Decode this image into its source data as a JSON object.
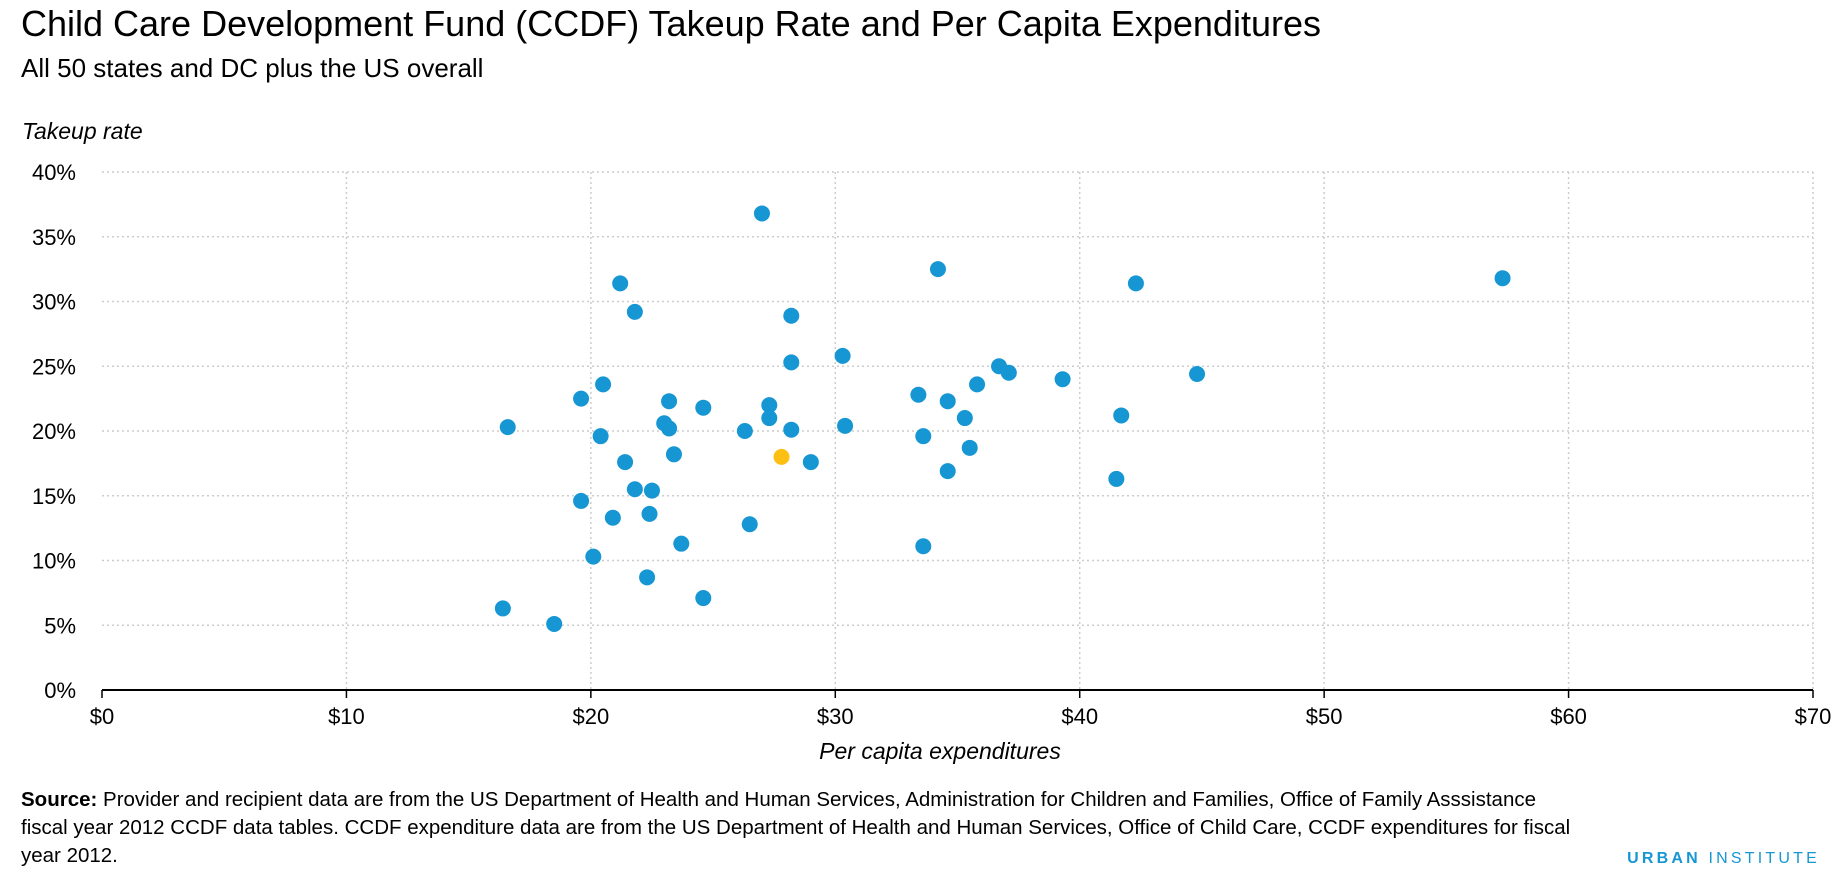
{
  "colors": {
    "main": "#1696d2",
    "highlight": "#fdbf11",
    "grid": "#cccccc",
    "axis": "#000000"
  },
  "chart_data": {
    "type": "scatter",
    "title": "Child Care Development Fund (CCDF) Takeup Rate and Per Capita Expenditures",
    "subtitle": "All 50 states and DC plus the US overall",
    "xlabel": "Per capita expenditures",
    "ylabel": "Takeup rate",
    "xlim": [
      0,
      70
    ],
    "ylim": [
      0,
      40
    ],
    "xticks": [
      0,
      10,
      20,
      30,
      40,
      50,
      60,
      70
    ],
    "xtick_labels": [
      "$0",
      "$10",
      "$20",
      "$30",
      "$40",
      "$50",
      "$60",
      "$70"
    ],
    "yticks": [
      0,
      5,
      10,
      15,
      20,
      25,
      30,
      35,
      40
    ],
    "ytick_labels": [
      "0%",
      "5%",
      "10%",
      "15%",
      "20%",
      "25%",
      "30%",
      "35%",
      "40%"
    ],
    "grid": true,
    "series": [
      {
        "points": [
          [
            27.0,
            36.8
          ],
          [
            34.2,
            32.5
          ],
          [
            21.2,
            31.4
          ],
          [
            42.3,
            31.4
          ],
          [
            57.3,
            31.8
          ],
          [
            21.8,
            29.2
          ],
          [
            28.2,
            28.9
          ],
          [
            30.3,
            25.8
          ],
          [
            28.2,
            25.3
          ],
          [
            36.7,
            25.0
          ],
          [
            37.1,
            24.5
          ],
          [
            44.8,
            24.4
          ],
          [
            39.3,
            24.0
          ],
          [
            20.5,
            23.6
          ],
          [
            35.8,
            23.6
          ],
          [
            19.6,
            22.5
          ],
          [
            33.4,
            22.8
          ],
          [
            23.2,
            22.3
          ],
          [
            34.6,
            22.3
          ],
          [
            24.6,
            21.8
          ],
          [
            27.3,
            22.0
          ],
          [
            27.3,
            21.0
          ],
          [
            35.3,
            21.0
          ],
          [
            41.7,
            21.2
          ],
          [
            16.6,
            20.3
          ],
          [
            23.0,
            20.6
          ],
          [
            23.2,
            20.2
          ],
          [
            26.3,
            20.0
          ],
          [
            28.2,
            20.1
          ],
          [
            30.4,
            20.4
          ],
          [
            20.4,
            19.6
          ],
          [
            33.6,
            19.6
          ],
          [
            35.5,
            18.7
          ],
          [
            23.4,
            18.2
          ],
          [
            21.4,
            17.6
          ],
          [
            29.0,
            17.6
          ],
          [
            34.6,
            16.9
          ],
          [
            41.5,
            16.3
          ],
          [
            21.8,
            15.5
          ],
          [
            22.5,
            15.4
          ],
          [
            19.6,
            14.6
          ],
          [
            20.9,
            13.3
          ],
          [
            22.4,
            13.6
          ],
          [
            26.5,
            12.8
          ],
          [
            23.7,
            11.3
          ],
          [
            33.6,
            11.1
          ],
          [
            20.1,
            10.3
          ],
          [
            22.3,
            8.7
          ],
          [
            24.6,
            7.1
          ],
          [
            16.4,
            6.3
          ],
          [
            18.5,
            5.1
          ]
        ]
      },
      {
        "points": [
          [
            27.8,
            18.0
          ]
        ]
      }
    ]
  },
  "source": {
    "label": "Source:",
    "text": " Provider and recipient data are from the US Department of Health and Human Services, Administration for Children and Families, Office of Family Asssistance fiscal year 2012 CCDF data tables. CCDF expenditure data are from the US Department of Health and Human Services, Office of Child Care,  CCDF expenditures for fiscal year 2012."
  },
  "brand": {
    "part1": "URBAN",
    "part2": "INSTITUTE"
  }
}
